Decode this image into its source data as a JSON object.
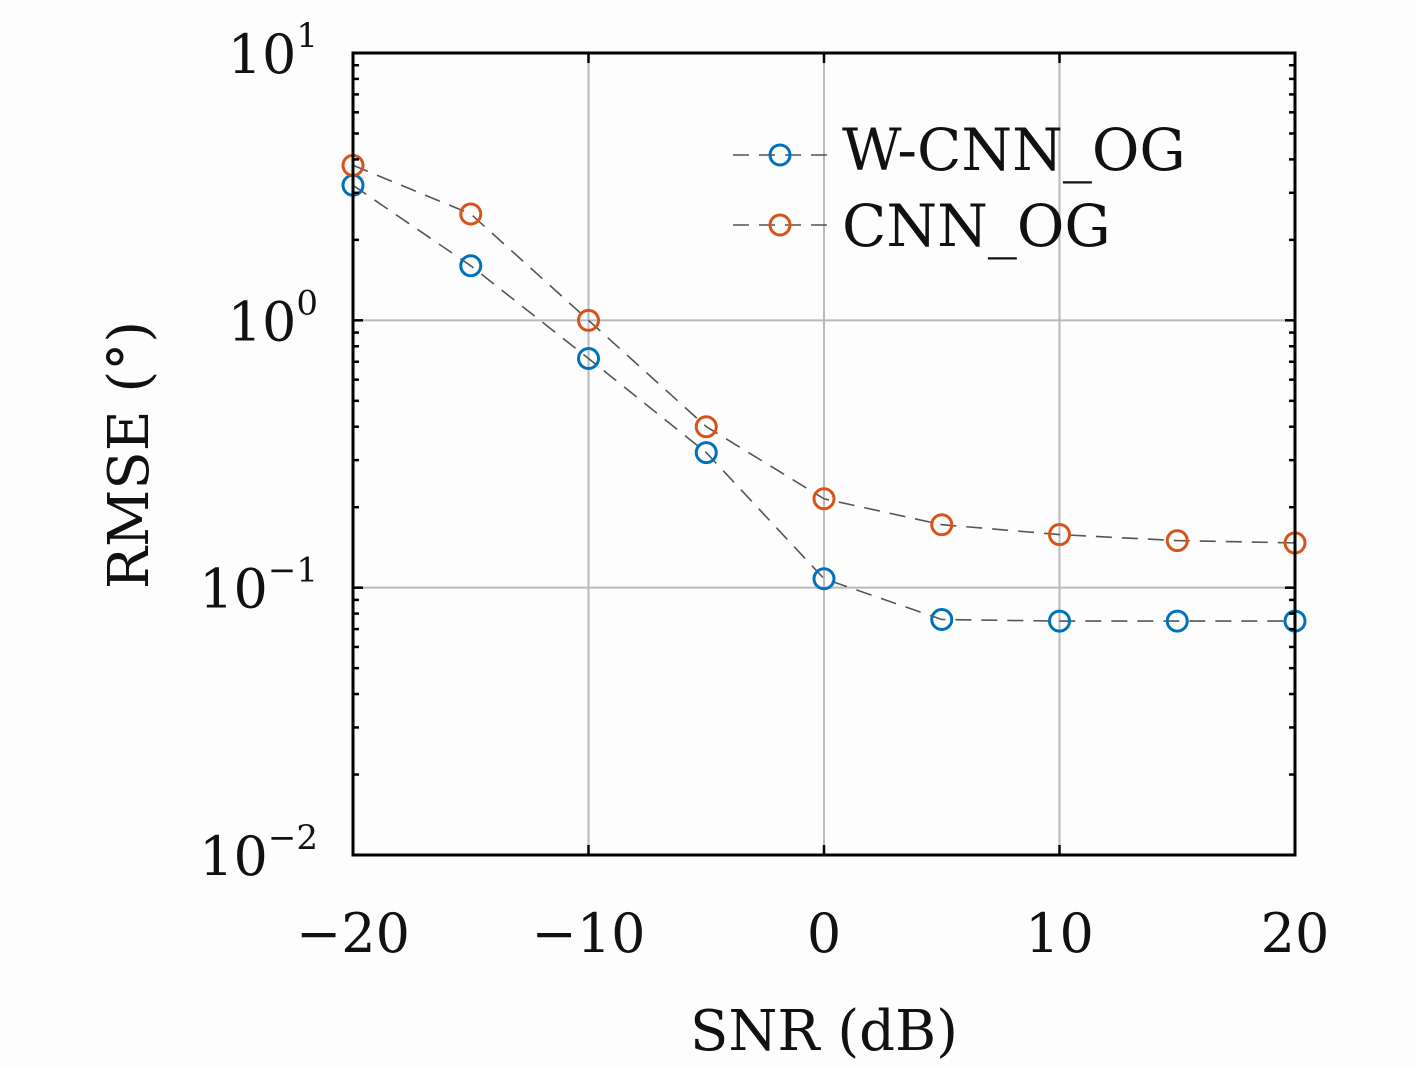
{
  "chart_data": {
    "type": "line",
    "xlabel": "SNR (dB)",
    "ylabel": "RMSE (°)",
    "xlim": [
      -20,
      20
    ],
    "ylim": [
      0.01,
      10
    ],
    "yscale": "log",
    "grid": true,
    "legend_position": "top-right",
    "x": [
      -20,
      -15,
      -10,
      -5,
      0,
      5,
      10,
      15,
      20
    ],
    "x_ticks": [
      {
        "value": -20,
        "label": "−20"
      },
      {
        "value": -10,
        "label": "−10"
      },
      {
        "value": 0,
        "label": "0"
      },
      {
        "value": 10,
        "label": "10"
      },
      {
        "value": 20,
        "label": "20"
      }
    ],
    "y_ticks": [
      {
        "value": 10,
        "base": "10",
        "exp": "1"
      },
      {
        "value": 1,
        "base": "10",
        "exp": "0"
      },
      {
        "value": 0.1,
        "base": "10",
        "exp": "−1"
      },
      {
        "value": 0.01,
        "base": "10",
        "exp": "−2"
      }
    ],
    "series": [
      {
        "name": "W-CNN_OG",
        "color": "#0072bd",
        "marker": "circle",
        "line": "dashed",
        "values": [
          3.2,
          1.6,
          0.72,
          0.32,
          0.108,
          0.076,
          0.075,
          0.075,
          0.075
        ]
      },
      {
        "name": "CNN_OG",
        "color": "#d95319",
        "marker": "circle",
        "line": "dashed",
        "values": [
          3.8,
          2.5,
          1.0,
          0.4,
          0.215,
          0.172,
          0.158,
          0.15,
          0.147
        ]
      }
    ]
  }
}
